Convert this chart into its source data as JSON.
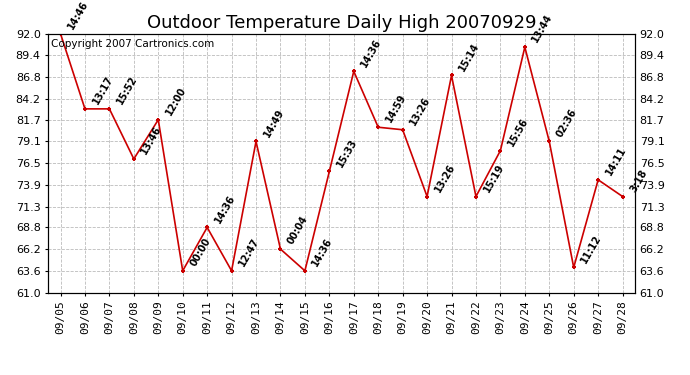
{
  "title": "Outdoor Temperature Daily High 20070929",
  "copyright": "Copyright 2007 Cartronics.com",
  "dates": [
    "09/05",
    "09/06",
    "09/07",
    "09/08",
    "09/09",
    "09/10",
    "09/11",
    "09/12",
    "09/13",
    "09/14",
    "09/15",
    "09/16",
    "09/17",
    "09/18",
    "09/19",
    "09/20",
    "09/21",
    "09/22",
    "09/23",
    "09/24",
    "09/25",
    "09/26",
    "09/27",
    "09/28"
  ],
  "values": [
    92.0,
    83.0,
    83.0,
    77.0,
    81.7,
    63.6,
    68.8,
    63.6,
    79.1,
    66.2,
    63.6,
    75.5,
    87.5,
    80.8,
    80.5,
    72.5,
    87.0,
    72.5,
    78.0,
    90.4,
    79.1,
    64.0,
    74.5,
    72.5
  ],
  "labels": [
    "14:46",
    "13:17",
    "15:52",
    "13:46",
    "12:00",
    "00:00",
    "14:36",
    "12:47",
    "14:49",
    "00:04",
    "14:36",
    "15:33",
    "14:36",
    "14:59",
    "13:26",
    "13:26",
    "15:14",
    "15:19",
    "15:56",
    "13:44",
    "02:36",
    "11:12",
    "14:11",
    "3:18"
  ],
  "ylim": [
    61.0,
    92.0
  ],
  "yticks": [
    61.0,
    63.6,
    66.2,
    68.8,
    71.3,
    73.9,
    76.5,
    79.1,
    81.7,
    84.2,
    86.8,
    89.4,
    92.0
  ],
  "line_color": "#cc0000",
  "marker_color": "#cc0000",
  "bg_color": "#ffffff",
  "grid_color": "#bbbbbb",
  "title_fontsize": 13,
  "label_fontsize": 7,
  "copyright_fontsize": 7.5,
  "tick_fontsize": 8
}
